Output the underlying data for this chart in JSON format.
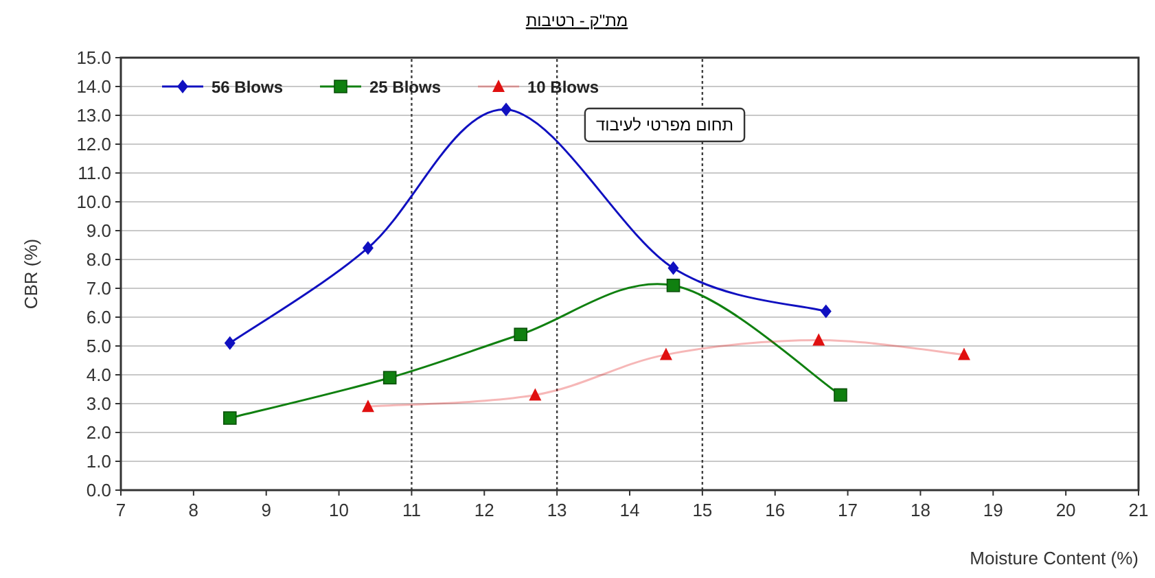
{
  "chart_data": {
    "type": "line",
    "title": "מת\"ק - רטיבות",
    "xlabel": "Moisture Content (%)",
    "ylabel": "CBR (%)",
    "xlim": [
      7,
      21
    ],
    "xticks": [
      7,
      8,
      9,
      10,
      11,
      12,
      13,
      14,
      15,
      16,
      17,
      18,
      19,
      20,
      21
    ],
    "ylim": [
      0,
      15
    ],
    "yticks": [
      {
        "value": 0,
        "label": "0.0"
      },
      {
        "value": 1,
        "label": "1.0"
      },
      {
        "value": 2,
        "label": "2.0"
      },
      {
        "value": 3,
        "label": "3.0"
      },
      {
        "value": 4,
        "label": "4.0"
      },
      {
        "value": 5,
        "label": "5.0"
      },
      {
        "value": 6,
        "label": "6.0"
      },
      {
        "value": 7,
        "label": "7.0"
      },
      {
        "value": 8,
        "label": "8.0"
      },
      {
        "value": 9,
        "label": "9.0"
      },
      {
        "value": 10,
        "label": "10.0"
      },
      {
        "value": 11,
        "label": "11.0"
      },
      {
        "value": 12,
        "label": "12.0"
      },
      {
        "value": 13,
        "label": "13.0"
      },
      {
        "value": 14,
        "label": "14.0"
      },
      {
        "value": 15,
        "label": "15.0"
      }
    ],
    "grid": "y",
    "legend": "top left",
    "series": [
      {
        "name": "56 Blows",
        "color": "#1010c0",
        "marker": "diamond",
        "x": [
          8.5,
          10.4,
          12.3,
          14.6,
          16.7
        ],
        "values": [
          5.1,
          8.4,
          13.2,
          7.7,
          6.2
        ]
      },
      {
        "name": "25 Blows",
        "color": "#108010",
        "marker": "square",
        "x": [
          8.5,
          10.7,
          12.5,
          14.6,
          16.9
        ],
        "values": [
          2.5,
          3.9,
          5.4,
          7.1,
          3.3
        ]
      },
      {
        "name": "10 Blows",
        "color": "#e01010",
        "marker": "triangle",
        "x": [
          10.4,
          12.7,
          14.5,
          16.6,
          18.6
        ],
        "values": [
          2.9,
          3.3,
          4.7,
          5.2,
          4.7
        ]
      }
    ],
    "ref_lines": [
      {
        "axis": "x",
        "value": 11,
        "line_style": "dotted",
        "color": "#404040"
      },
      {
        "axis": "x",
        "value": 13,
        "line_style": "dotted",
        "color": "#404040"
      },
      {
        "axis": "x",
        "value": 15,
        "line_style": "dotted",
        "color": "#404040"
      }
    ],
    "annotations": [
      "תחום מפרטי לעיבוד"
    ]
  }
}
